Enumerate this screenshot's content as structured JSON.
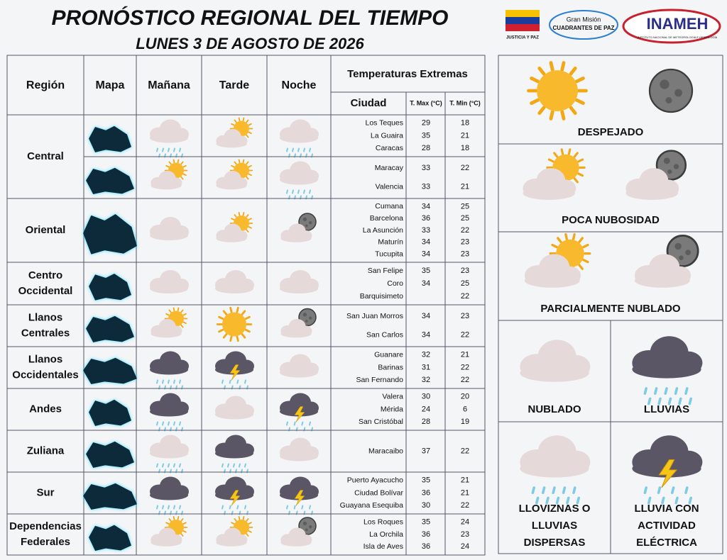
{
  "header": {
    "title": "PRONÓSTICO REGIONAL DEL TIEMPO",
    "date": "LUNES 3 DE AGOSTO DE 2026",
    "logos": {
      "ministry": "JUSTICIA Y PAZ",
      "mission": [
        "Gran Misión",
        "CUADRANTES DE PAZ"
      ],
      "institute": "INAMEH",
      "institute_full": "INSTITUTO NACIONAL DE METEOROLOGÍA E HIDROLOGÍA"
    }
  },
  "table": {
    "headers": {
      "region": "Región",
      "map": "Mapa",
      "morning": "Mañana",
      "afternoon": "Tarde",
      "night": "Noche",
      "temps": "Temperaturas  Extremas",
      "city": "Ciudad",
      "tmax": "T. Max (°C)",
      "tmin": "T. Min (°C)"
    },
    "regions": [
      {
        "name": [
          "Central"
        ],
        "groups": [
          {
            "cities": [
              {
                "name": "Los Teques",
                "tmax": 29,
                "tmin": 18
              },
              {
                "name": "La Guaira",
                "tmax": 35,
                "tmin": 21
              },
              {
                "name": "Caracas",
                "tmax": 28,
                "tmin": 18
              }
            ]
          },
          {
            "cities": [
              {
                "name": "Maracay",
                "tmax": 33,
                "tmin": 22
              },
              {
                "name": "Valencia",
                "tmax": 33,
                "tmin": 21
              }
            ]
          }
        ]
      },
      {
        "name": [
          "Oriental"
        ],
        "groups": [
          {
            "cities": [
              {
                "name": "Cumana",
                "tmax": 34,
                "tmin": 25
              },
              {
                "name": "Barcelona",
                "tmax": 36,
                "tmin": 25
              },
              {
                "name": "La Asunción",
                "tmax": 33,
                "tmin": 22
              },
              {
                "name": "Maturín",
                "tmax": 34,
                "tmin": 23
              },
              {
                "name": "Tucupita",
                "tmax": 34,
                "tmin": 23
              }
            ]
          }
        ]
      },
      {
        "name": [
          "Centro",
          "Occidental"
        ],
        "groups": [
          {
            "cities": [
              {
                "name": "San Felipe",
                "tmax": 35,
                "tmin": 23
              },
              {
                "name": "Coro",
                "tmax": 34,
                "tmin": 25
              },
              {
                "name": "Barquisimeto",
                "tmax": null,
                "tmin": 22
              }
            ]
          }
        ]
      },
      {
        "name": [
          "Llanos",
          "Centrales"
        ],
        "groups": [
          {
            "cities": [
              {
                "name": "San Juan Morros",
                "tmax": 34,
                "tmin": 23
              },
              {
                "name": "San Carlos",
                "tmax": 34,
                "tmin": 22
              }
            ]
          }
        ]
      },
      {
        "name": [
          "Llanos",
          "Occidentales"
        ],
        "groups": [
          {
            "cities": [
              {
                "name": "Guanare",
                "tmax": 32,
                "tmin": 21
              },
              {
                "name": "Barinas",
                "tmax": 31,
                "tmin": 22
              },
              {
                "name": "San Fernando",
                "tmax": 32,
                "tmin": 22
              }
            ]
          }
        ]
      },
      {
        "name": [
          "Andes"
        ],
        "groups": [
          {
            "cities": [
              {
                "name": "Valera",
                "tmax": 30,
                "tmin": 20
              },
              {
                "name": "Mérida",
                "tmax": 24,
                "tmin": 6
              },
              {
                "name": "San Cristóbal",
                "tmax": 28,
                "tmin": 19
              }
            ]
          }
        ]
      },
      {
        "name": [
          "Zuliana"
        ],
        "groups": [
          {
            "cities": [
              {
                "name": "Maracaibo",
                "tmax": 37,
                "tmin": 22
              }
            ]
          }
        ]
      },
      {
        "name": [
          "Sur"
        ],
        "groups": [
          {
            "cities": [
              {
                "name": "Puerto Ayacucho",
                "tmax": 35,
                "tmin": 21
              },
              {
                "name": "Ciudad Bolívar",
                "tmax": 36,
                "tmin": 21
              },
              {
                "name": "Guayana Esequiba",
                "tmax": 30,
                "tmin": 22
              }
            ]
          }
        ]
      },
      {
        "name": [
          "Dependencias",
          "Federales"
        ],
        "groups": [
          {
            "cities": [
              {
                "name": "Los Roques",
                "tmax": 35,
                "tmin": 24
              },
              {
                "name": "La Orchila",
                "tmax": 36,
                "tmin": 23
              },
              {
                "name": "Isla de Aves",
                "tmax": 36,
                "tmin": 24
              }
            ]
          }
        ]
      }
    ]
  },
  "legend": [
    {
      "label": [
        "DESPEJADO"
      ]
    },
    {
      "label": [
        "POCA NUBOSIDAD"
      ]
    },
    {
      "label": [
        "PARCIALMENTE NUBLADO"
      ]
    },
    {
      "label": [
        "NUBLADO"
      ]
    },
    {
      "label": [
        "LLUVIAS"
      ]
    },
    {
      "label": [
        "LLOVIZNAS O",
        "LLUVIAS",
        "DISPERSAS"
      ]
    },
    {
      "label": [
        "LLUVIA CON",
        "ACTIVIDAD",
        "ELÉCTRICA"
      ]
    }
  ]
}
